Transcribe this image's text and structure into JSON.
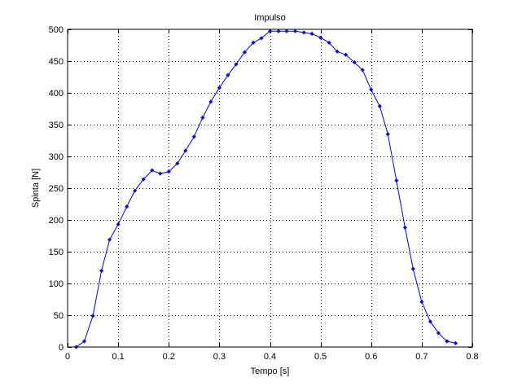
{
  "figure": {
    "background": "#ffffff"
  },
  "chart_data": {
    "type": "line",
    "title": "Impulso",
    "xlabel": "Tempo [s]",
    "ylabel": "Spinta [N]",
    "xlim": [
      0,
      0.8
    ],
    "ylim": [
      0,
      500
    ],
    "xticks": [
      0,
      0.1,
      0.2,
      0.3,
      0.4,
      0.5,
      0.6,
      0.7,
      0.8
    ],
    "xtick_labels": [
      "0",
      "0.1",
      "0.2",
      "0.3",
      "0.4",
      "0.5",
      "0.6",
      "0.7",
      "0.8"
    ],
    "yticks": [
      0,
      50,
      100,
      150,
      200,
      250,
      300,
      350,
      400,
      450,
      500
    ],
    "ytick_labels": [
      "0",
      "50",
      "100",
      "150",
      "200",
      "250",
      "300",
      "350",
      "400",
      "450",
      "500"
    ],
    "grid": true,
    "grid_style": "dotted",
    "legend": false,
    "series": [
      {
        "color": "#0000ff",
        "marker": "diamond",
        "x": [
          0.017,
          0.033,
          0.05,
          0.067,
          0.083,
          0.1,
          0.117,
          0.133,
          0.15,
          0.167,
          0.183,
          0.2,
          0.217,
          0.233,
          0.25,
          0.267,
          0.283,
          0.3,
          0.317,
          0.333,
          0.35,
          0.367,
          0.383,
          0.4,
          0.417,
          0.433,
          0.45,
          0.467,
          0.483,
          0.5,
          0.517,
          0.533,
          0.55,
          0.567,
          0.583,
          0.6,
          0.617,
          0.633,
          0.65,
          0.667,
          0.683,
          0.7,
          0.717,
          0.733,
          0.75,
          0.767
        ],
        "y": [
          0,
          9,
          49,
          120,
          169,
          193,
          221,
          246,
          264,
          278,
          273,
          276,
          289,
          309,
          331,
          361,
          386,
          408,
          428,
          445,
          464,
          479,
          486,
          497,
          497,
          497,
          497,
          495,
          493,
          487,
          479,
          465,
          460,
          448,
          436,
          405,
          379,
          335,
          262,
          188,
          123,
          71,
          40,
          22,
          9,
          6
        ]
      }
    ]
  }
}
